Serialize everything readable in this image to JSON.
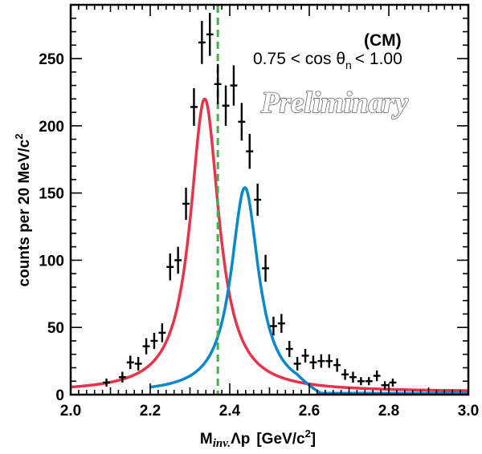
{
  "chart_data": {
    "type": "scatter",
    "title": "",
    "xlabel_main": "M",
    "xlabel_sub": "inv.",
    "xlabel_pair": "Λp",
    "xlabel_unit": "[GeV/c",
    "xlabel_unit_exp": "2",
    "xlabel_close": "]",
    "ylabel": "counts per 20 MeV/c",
    "ylabel_exp": "2",
    "xlim": [
      2.0,
      3.0
    ],
    "ylim": [
      0,
      290
    ],
    "x_ticks": [
      "2.0",
      "2.2",
      "2.4",
      "2.6",
      "2.8",
      "3.0"
    ],
    "x_tick_values": [
      2.0,
      2.2,
      2.4,
      2.6,
      2.8,
      3.0
    ],
    "y_ticks": [
      "0",
      "50",
      "100",
      "150",
      "200",
      "250"
    ],
    "y_tick_values": [
      0,
      50,
      100,
      150,
      200,
      250
    ],
    "annotation": {
      "lead": "0.75 < cos θ",
      "sub": "n",
      "sup": "(CM)",
      "tail": "< 1.00"
    },
    "watermark": "Preliminary",
    "threshold_x": 2.37,
    "colors": {
      "data": "#000000",
      "red": "#e8344a",
      "blue": "#0a88cc",
      "threshold": "#3cb44b"
    },
    "data_points": [
      {
        "x": 2.09,
        "y": 9,
        "err": 3
      },
      {
        "x": 2.13,
        "y": 13,
        "err": 4
      },
      {
        "x": 2.15,
        "y": 24,
        "err": 5
      },
      {
        "x": 2.17,
        "y": 23,
        "err": 5
      },
      {
        "x": 2.19,
        "y": 36,
        "err": 6
      },
      {
        "x": 2.21,
        "y": 40,
        "err": 6
      },
      {
        "x": 2.23,
        "y": 46,
        "err": 7
      },
      {
        "x": 2.25,
        "y": 95,
        "err": 10
      },
      {
        "x": 2.27,
        "y": 100,
        "err": 10
      },
      {
        "x": 2.29,
        "y": 142,
        "err": 12
      },
      {
        "x": 2.31,
        "y": 214,
        "err": 14
      },
      {
        "x": 2.33,
        "y": 262,
        "err": 16
      },
      {
        "x": 2.35,
        "y": 268,
        "err": 16
      },
      {
        "x": 2.37,
        "y": 231,
        "err": 15
      },
      {
        "x": 2.39,
        "y": 215,
        "err": 15
      },
      {
        "x": 2.41,
        "y": 230,
        "err": 15
      },
      {
        "x": 2.43,
        "y": 203,
        "err": 14
      },
      {
        "x": 2.45,
        "y": 181,
        "err": 13
      },
      {
        "x": 2.47,
        "y": 145,
        "err": 12
      },
      {
        "x": 2.49,
        "y": 94,
        "err": 10
      },
      {
        "x": 2.51,
        "y": 51,
        "err": 7
      },
      {
        "x": 2.53,
        "y": 53,
        "err": 7
      },
      {
        "x": 2.55,
        "y": 34,
        "err": 6
      },
      {
        "x": 2.57,
        "y": 23,
        "err": 5
      },
      {
        "x": 2.59,
        "y": 29,
        "err": 5
      },
      {
        "x": 2.61,
        "y": 24,
        "err": 5
      },
      {
        "x": 2.63,
        "y": 25,
        "err": 5
      },
      {
        "x": 2.65,
        "y": 25,
        "err": 5
      },
      {
        "x": 2.67,
        "y": 22,
        "err": 5
      },
      {
        "x": 2.69,
        "y": 15,
        "err": 4
      },
      {
        "x": 2.71,
        "y": 13,
        "err": 4
      },
      {
        "x": 2.73,
        "y": 10,
        "err": 3
      },
      {
        "x": 2.75,
        "y": 10,
        "err": 3
      },
      {
        "x": 2.77,
        "y": 14,
        "err": 4
      },
      {
        "x": 2.79,
        "y": 7,
        "err": 3
      },
      {
        "x": 2.81,
        "y": 9,
        "err": 3
      }
    ],
    "curves": [
      {
        "color_key": "red",
        "peak_x": 2.337,
        "peak_y": 220,
        "gamma": 0.044,
        "baseline": 2,
        "xmin": 2.0,
        "xmax": 3.0
      },
      {
        "color_key": "blue",
        "peak_x": 2.438,
        "peak_y": 154,
        "gamma": 0.042,
        "baseline": 1,
        "xmin": 2.2,
        "xmax": 3.0,
        "cutoff": 2.57
      }
    ]
  }
}
